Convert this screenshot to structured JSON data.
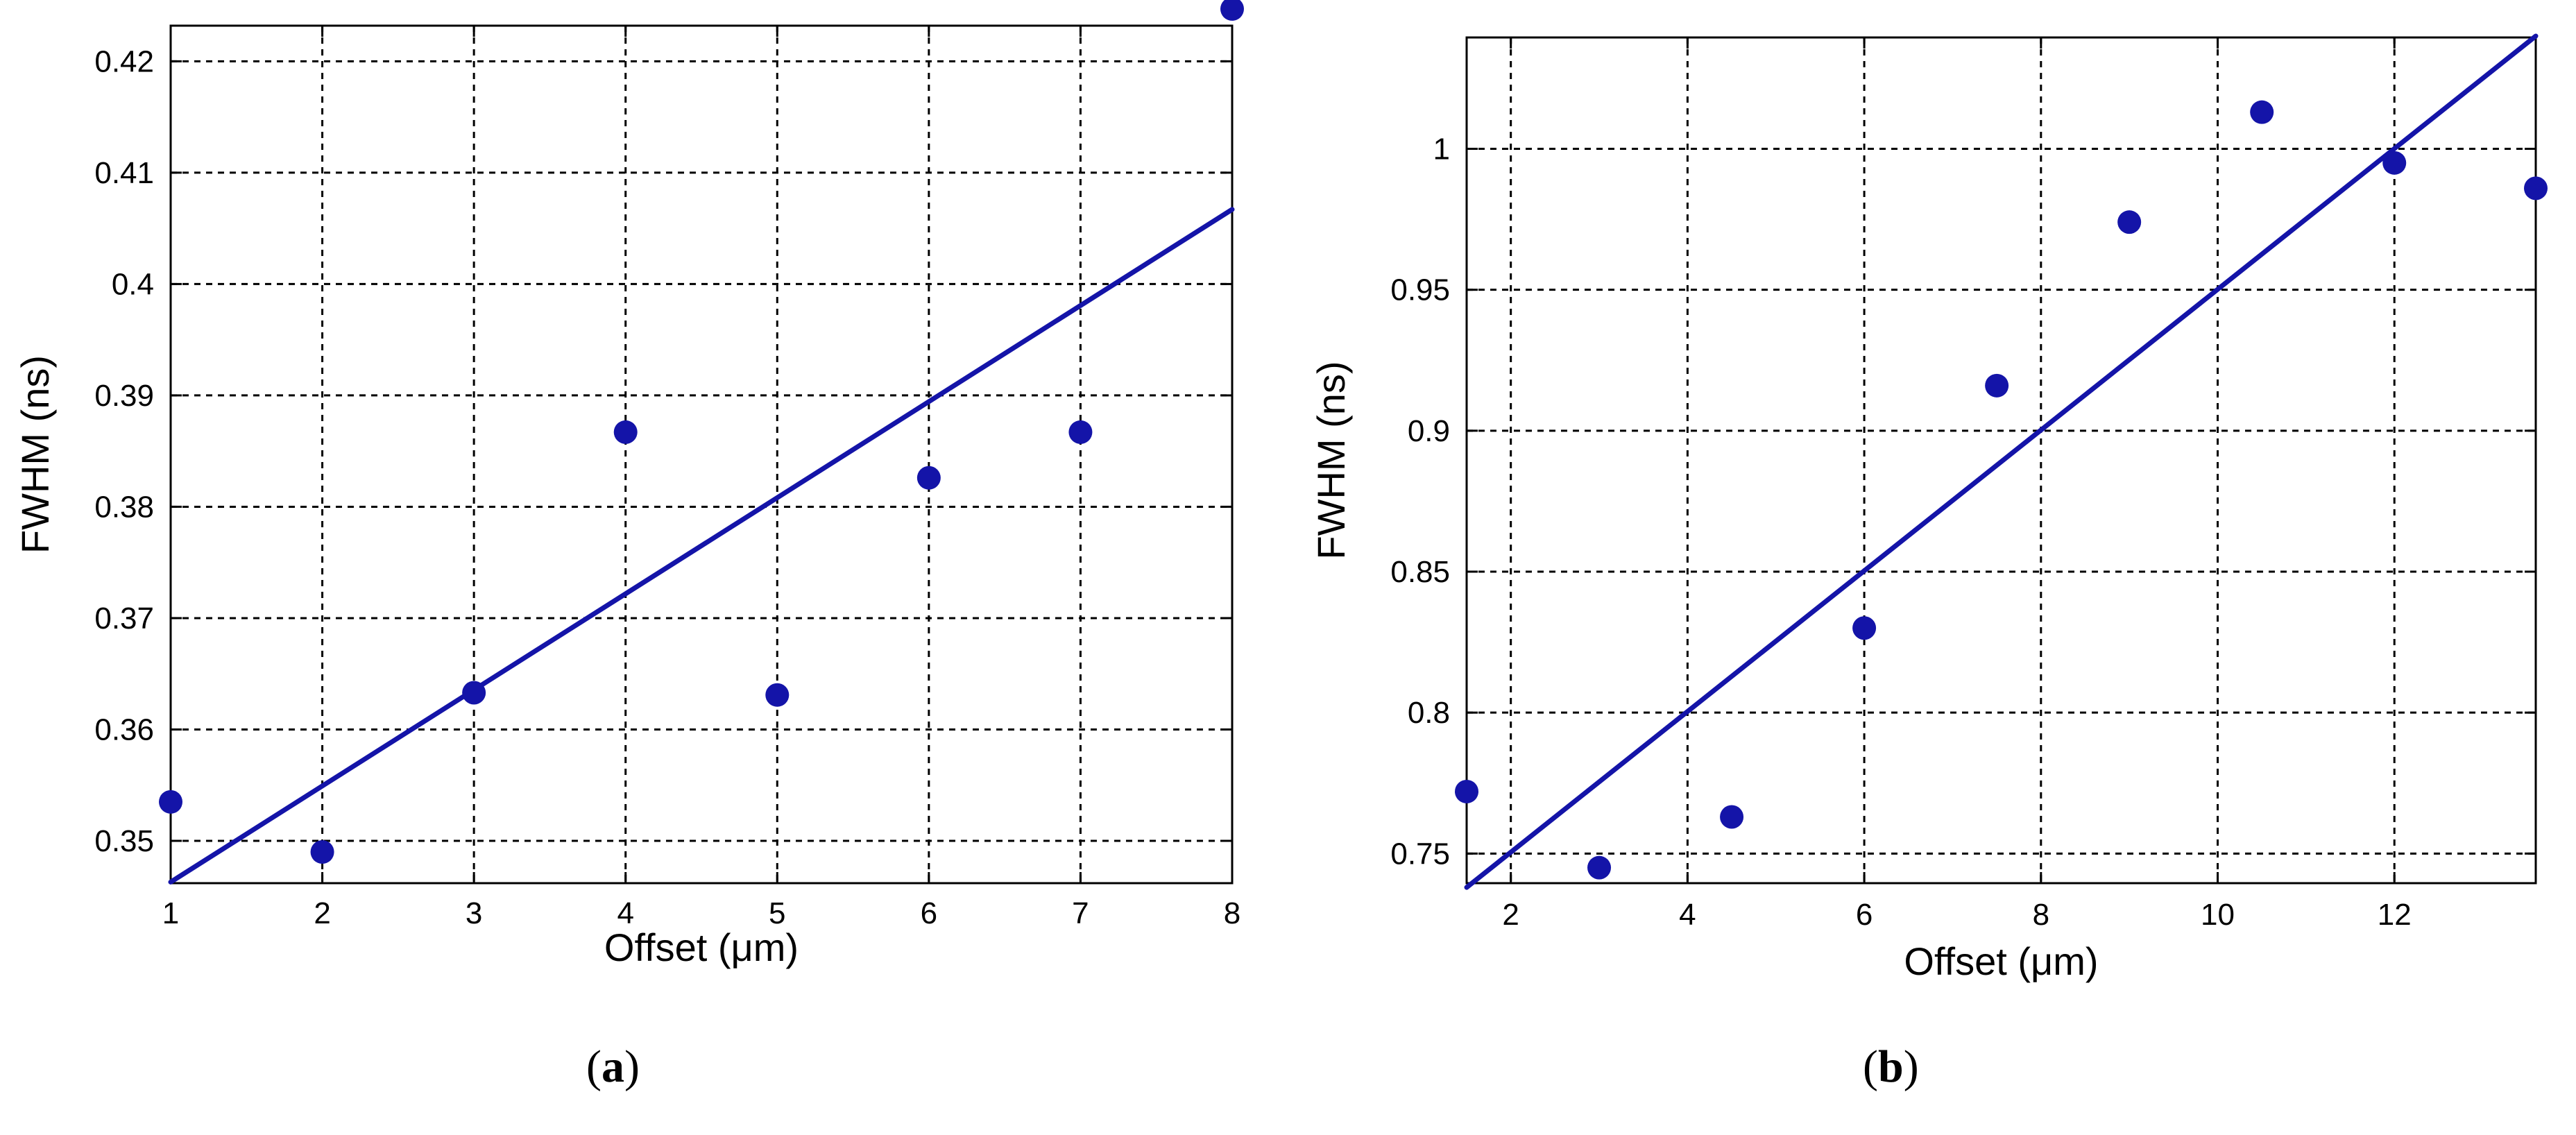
{
  "colors": {
    "series": "#1414a8",
    "axis": "#000000",
    "grid": "#000000",
    "background": "#ffffff"
  },
  "chart_data": [
    {
      "type": "scatter",
      "panel_label": "a",
      "xlabel": "Offset (μm)",
      "ylabel": "FWHM (ns)",
      "xlim": [
        1,
        8
      ],
      "ylim": [
        0.3462,
        0.4232
      ],
      "xticks": [
        1,
        2,
        3,
        4,
        5,
        6,
        7,
        8
      ],
      "yticks": [
        0.35,
        0.36,
        0.37,
        0.38,
        0.39,
        0.4,
        0.41,
        0.42
      ],
      "grid": true,
      "points": {
        "x": [
          1,
          2,
          3,
          4,
          5,
          6,
          7,
          8
        ],
        "y": [
          0.3535,
          0.349,
          0.3633,
          0.3867,
          0.3631,
          0.3826,
          0.3867,
          0.4247
        ]
      },
      "fit_line": {
        "x": [
          1,
          8
        ],
        "y": [
          0.3463,
          0.4067
        ]
      }
    },
    {
      "type": "scatter",
      "panel_label": "b",
      "xlabel": "Offset (μm)",
      "ylabel": "FWHM (ns)",
      "xlim": [
        1.5,
        13.6
      ],
      "ylim": [
        0.7395,
        1.0395
      ],
      "xticks": [
        2,
        4,
        6,
        8,
        10,
        12
      ],
      "yticks": [
        0.75,
        0.8,
        0.85,
        0.9,
        0.95,
        1
      ],
      "grid": true,
      "points": {
        "x": [
          1.5,
          3.0,
          4.5,
          6.0,
          7.5,
          9.0,
          10.5,
          12.0,
          13.6
        ],
        "y": [
          0.772,
          0.745,
          0.763,
          0.83,
          0.916,
          0.974,
          1.013,
          0.995,
          0.986
        ]
      },
      "fit_line": {
        "x": [
          1.5,
          13.6
        ],
        "y": [
          0.738,
          1.04
        ]
      }
    }
  ]
}
